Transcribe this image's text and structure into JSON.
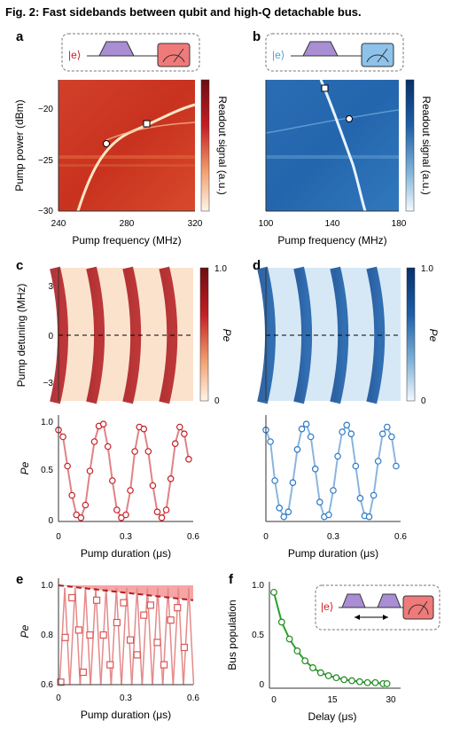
{
  "figure": {
    "title": "Fig. 2: Fast sidebands between qubit and high-Q detachable bus.",
    "accent_red": "#c41e24",
    "accent_blue": "#1d5fa8",
    "pump_color": "#a98ed3"
  },
  "panels": {
    "a": {
      "label": "a",
      "ket": "|e⟩",
      "xlabel": "Pump frequency (MHz)",
      "ylabel": "Pump power (dBm)",
      "xticks": [
        "240",
        "280",
        "320"
      ],
      "yticks": [
        "−20",
        "−25",
        "−30"
      ],
      "cbar_label": "Readout signal (a.u.)"
    },
    "b": {
      "label": "b",
      "ket": "|e⟩",
      "xlabel": "Pump frequency (MHz)",
      "xticks": [
        "100",
        "140",
        "180"
      ],
      "cbar_label": "Readout signal (a.u.)"
    },
    "c": {
      "label": "c",
      "ylabel": "Pump detuning (MHz)",
      "yticks": [
        "3",
        "0",
        "−3"
      ],
      "cbar_label": "Pe",
      "cbar_ticks": [
        "1.0",
        "0"
      ]
    },
    "d": {
      "label": "d",
      "cbar_label": "Pe",
      "cbar_ticks": [
        "1.0",
        "0"
      ]
    },
    "c2": {
      "xlabel": "Pump duration (μs)",
      "ylabel": "Pe",
      "xticks": [
        "0",
        "0.3",
        "0.6"
      ],
      "yticks": [
        "1.0",
        "0.5",
        "0"
      ]
    },
    "d2": {
      "xlabel": "Pump duration (μs)",
      "xticks": [
        "0",
        "0.3",
        "0.6"
      ]
    },
    "e": {
      "label": "e",
      "xlabel": "Pump duration (μs)",
      "ylabel": "Pe",
      "xticks": [
        "0",
        "0.3",
        "0.6"
      ],
      "yticks": [
        "1.0",
        "0.8",
        "0.6"
      ]
    },
    "f": {
      "label": "f",
      "ket": "|e⟩",
      "xlabel": "Delay (μs)",
      "ylabel": "Bus population",
      "xticks": [
        "0",
        "15",
        "30"
      ],
      "yticks": [
        "1.0",
        "0.5",
        "0"
      ]
    }
  },
  "chart_data": [
    {
      "type": "scatter",
      "panel": "c-bottom",
      "xlabel": "Pump duration (μs)",
      "ylabel": "Pe",
      "xlim": [
        0,
        0.6
      ],
      "ylim": [
        0,
        1
      ],
      "x": [
        0.0,
        0.02,
        0.04,
        0.06,
        0.08,
        0.1,
        0.12,
        0.14,
        0.16,
        0.18,
        0.2,
        0.22,
        0.24,
        0.26,
        0.28,
        0.3,
        0.32,
        0.34,
        0.36,
        0.38,
        0.4,
        0.42,
        0.44,
        0.46,
        0.48,
        0.5,
        0.52,
        0.54,
        0.56,
        0.58
      ],
      "y": [
        0.92,
        0.85,
        0.55,
        0.25,
        0.05,
        0.02,
        0.15,
        0.5,
        0.8,
        0.96,
        0.98,
        0.75,
        0.4,
        0.1,
        0.02,
        0.05,
        0.3,
        0.7,
        0.95,
        0.93,
        0.7,
        0.35,
        0.08,
        0.02,
        0.1,
        0.42,
        0.78,
        0.95,
        0.88,
        0.62
      ]
    },
    {
      "type": "scatter",
      "panel": "d-bottom",
      "xlabel": "Pump duration (μs)",
      "xlim": [
        0,
        0.6
      ],
      "ylim": [
        0,
        1
      ],
      "x": [
        0.0,
        0.02,
        0.04,
        0.06,
        0.08,
        0.1,
        0.12,
        0.14,
        0.16,
        0.18,
        0.2,
        0.22,
        0.24,
        0.26,
        0.28,
        0.3,
        0.32,
        0.34,
        0.36,
        0.38,
        0.4,
        0.42,
        0.44,
        0.46,
        0.48,
        0.5,
        0.52,
        0.54,
        0.56,
        0.58
      ],
      "y": [
        0.92,
        0.8,
        0.4,
        0.12,
        0.03,
        0.08,
        0.38,
        0.72,
        0.93,
        0.98,
        0.85,
        0.52,
        0.18,
        0.03,
        0.05,
        0.3,
        0.65,
        0.9,
        0.97,
        0.88,
        0.55,
        0.22,
        0.04,
        0.03,
        0.25,
        0.6,
        0.88,
        0.95,
        0.85,
        0.55
      ]
    },
    {
      "type": "scatter",
      "panel": "e",
      "xlabel": "Pump duration (μs)",
      "ylabel": "Pe",
      "xlim": [
        0,
        0.6
      ],
      "ylim": [
        0.6,
        1.0
      ],
      "x": [
        0.01,
        0.03,
        0.06,
        0.09,
        0.11,
        0.14,
        0.17,
        0.2,
        0.23,
        0.26,
        0.29,
        0.32,
        0.35,
        0.38,
        0.41,
        0.44,
        0.47,
        0.5,
        0.53,
        0.56
      ],
      "y": [
        0.61,
        0.79,
        0.95,
        0.82,
        0.65,
        0.8,
        0.94,
        0.8,
        0.68,
        0.85,
        0.93,
        0.78,
        0.72,
        0.88,
        0.92,
        0.77,
        0.68,
        0.86,
        0.91,
        0.75
      ],
      "envelope": {
        "x": [
          0,
          0.6
        ],
        "y": [
          1.0,
          0.94
        ]
      }
    },
    {
      "type": "line",
      "panel": "f",
      "xlabel": "Delay (μs)",
      "ylabel": "Bus population",
      "xlim": [
        0,
        30
      ],
      "ylim": [
        0,
        1
      ],
      "x": [
        0,
        2,
        4,
        6,
        8,
        10,
        12,
        14,
        16,
        18,
        20,
        22,
        24,
        26,
        28,
        29
      ],
      "y": [
        0.93,
        0.63,
        0.46,
        0.34,
        0.24,
        0.17,
        0.12,
        0.09,
        0.07,
        0.05,
        0.04,
        0.03,
        0.02,
        0.02,
        0.01,
        0.01
      ]
    }
  ]
}
